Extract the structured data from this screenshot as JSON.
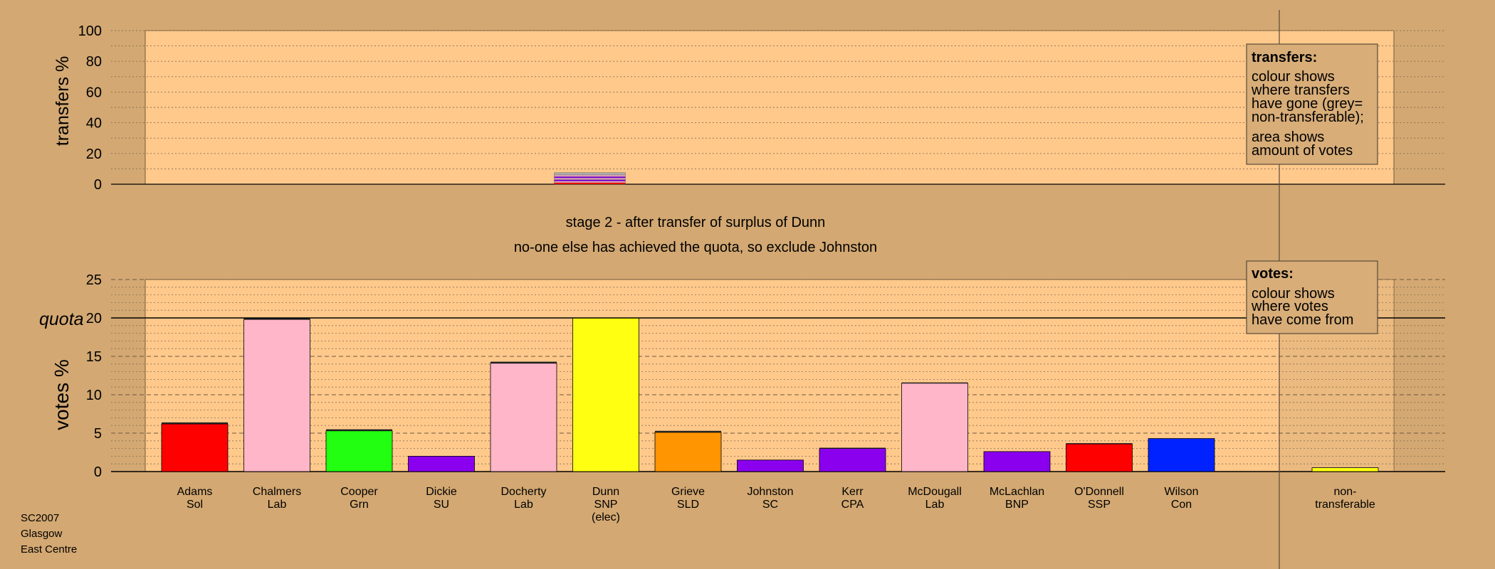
{
  "chart_data": [
    {
      "type": "bar",
      "ylabel": "transfers %",
      "ylim": [
        0,
        100
      ],
      "yticks": [
        0,
        20,
        40,
        60,
        80,
        100
      ],
      "stacked_bar": {
        "category": "Dunn",
        "segments": [
          {
            "value": 1.0,
            "color": "#ff0000"
          },
          {
            "value": 1.0,
            "color": "#ffb6c8"
          },
          {
            "value": 1.0,
            "color": "#8a00ee"
          },
          {
            "value": 1.0,
            "color": "#ffb6c8"
          },
          {
            "value": 1.0,
            "color": "#8a00ee"
          },
          {
            "value": 1.0,
            "color": "#ffb6c8"
          },
          {
            "value": 1.5,
            "color": "#aaaaaa"
          }
        ]
      },
      "legend": {
        "title": "transfers:",
        "lines": [
          "colour shows",
          "where transfers",
          "have gone (grey=",
          "non-transferable);"
        ],
        "lines2": [
          "area shows",
          "amount of votes"
        ]
      }
    },
    {
      "type": "bar",
      "ylabel": "votes %",
      "ylim": [
        0,
        25
      ],
      "yticks": [
        0,
        5,
        10,
        15,
        20,
        25
      ],
      "quota": 20,
      "quota_label": "quota",
      "categories": [
        {
          "name": "Adams",
          "party": "Sol",
          "extra": "",
          "value": 6.2,
          "top": 0.2,
          "color": "#ff0000"
        },
        {
          "name": "Chalmers",
          "party": "Lab",
          "extra": "",
          "value": 19.8,
          "top": 0.2,
          "color": "#ffb6c8"
        },
        {
          "name": "Cooper",
          "party": "Grn",
          "extra": "",
          "value": 5.3,
          "top": 0.2,
          "color": "#22ff11"
        },
        {
          "name": "Dickie",
          "party": "SU",
          "extra": "",
          "value": 2.0,
          "top": 0.0,
          "color": "#8a00ee"
        },
        {
          "name": "Docherty",
          "party": "Lab",
          "extra": "",
          "value": 14.1,
          "top": 0.2,
          "color": "#ffb6c8"
        },
        {
          "name": "Dunn",
          "party": "SNP",
          "extra": "(elec)",
          "value": 20.0,
          "top": 0.0,
          "color": "#ffff11"
        },
        {
          "name": "Grieve",
          "party": "SLD",
          "extra": "",
          "value": 5.1,
          "top": 0.2,
          "color": "#ff9500"
        },
        {
          "name": "Johnston",
          "party": "SC",
          "extra": "",
          "value": 1.5,
          "top": 0.0,
          "color": "#8a00ee"
        },
        {
          "name": "Kerr",
          "party": "CPA",
          "extra": "",
          "value": 3.0,
          "top": 0.1,
          "color": "#8a00ee"
        },
        {
          "name": "McDougall",
          "party": "Lab",
          "extra": "",
          "value": 11.5,
          "top": 0.1,
          "color": "#ffb6c8"
        },
        {
          "name": "McLachlan",
          "party": "BNP",
          "extra": "",
          "value": 2.6,
          "top": 0.0,
          "color": "#8a00ee"
        },
        {
          "name": "O'Donnell",
          "party": "SSP",
          "extra": "",
          "value": 3.6,
          "top": 0.1,
          "color": "#ff0000"
        },
        {
          "name": "Wilson",
          "party": "Con",
          "extra": "",
          "value": 4.3,
          "top": 0.0,
          "color": "#0022ff"
        }
      ],
      "non_transferable": {
        "name": "non-",
        "party": "transferable",
        "value": 0.5,
        "color": "#ffff11"
      },
      "legend": {
        "title": "votes:",
        "lines": [
          "colour shows",
          "where votes",
          "have come from"
        ]
      }
    }
  ],
  "stage_text": "stage 2 - after transfer of surplus of Dunn",
  "exclude_text": "no-one else has achieved the quota, so exclude Johnston",
  "footer": [
    "SC2007",
    "Glasgow",
    "East Centre"
  ],
  "colors": {
    "background": "#d3a872",
    "panel": "#ffc98b"
  }
}
